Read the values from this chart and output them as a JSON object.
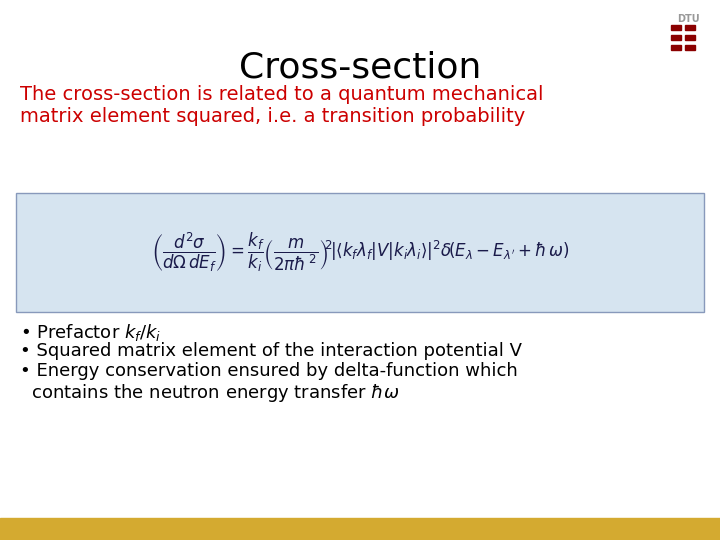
{
  "title": "Cross-section",
  "title_fontsize": 26,
  "title_color": "#000000",
  "subtitle_line1": "The cross-section is related to a quantum mechanical",
  "subtitle_line2": "matrix element squared, i.e. a transition probability",
  "subtitle_color": "#cc0000",
  "subtitle_fontsize": 14,
  "formula_box_color": "#d6e4f0",
  "formula_box_edge": "#8899bb",
  "bullet1": "• Prefactor $k_f/k_i$",
  "bullet2": "• Squared matrix element of the interaction potential V",
  "bullet3a": "• Energy conservation ensured by delta-function which",
  "bullet3b": "  contains the neutron energy transfer $\\hbar\\omega$",
  "bullet_color": "#000000",
  "bullet_fontsize": 13,
  "bottom_bar_color": "#d4aa30",
  "background_color": "#ffffff",
  "dtu_text_color": "#999999",
  "dtu_logo_color": "#8b0000"
}
